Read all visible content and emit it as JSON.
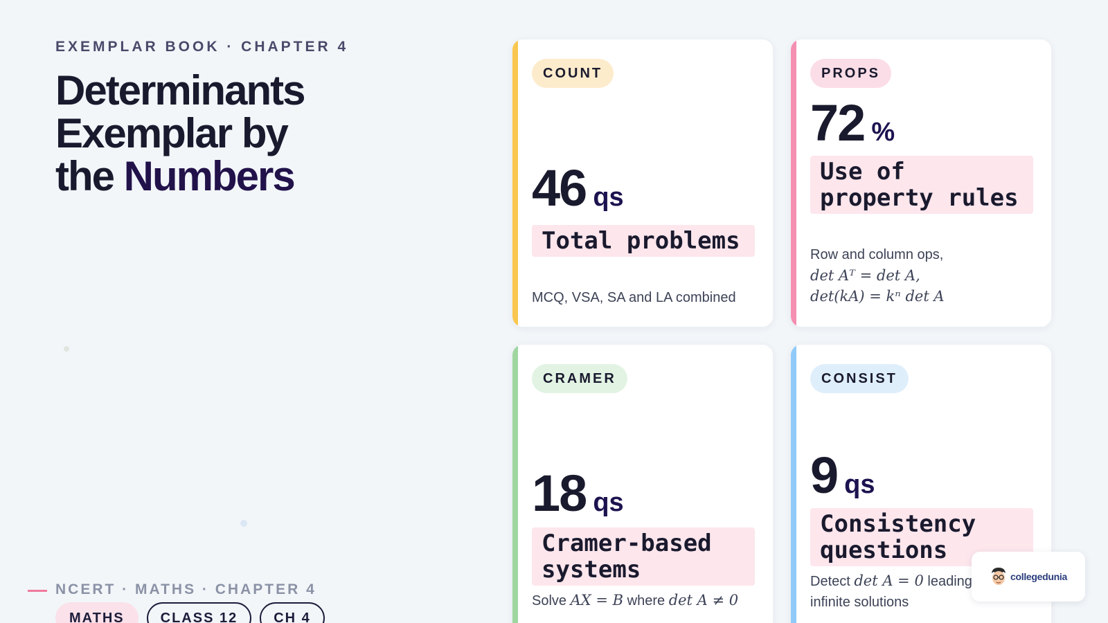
{
  "eyebrow": "EXEMPLAR BOOK · CHAPTER 4",
  "title": {
    "line1": "Determinants",
    "line2": "Exemplar by",
    "line3_plain": "the ",
    "line3_accent": "Numbers"
  },
  "footer": {
    "text": "NCERT · MATHS · CHAPTER 4",
    "tags": [
      "MATHS",
      "CLASS 12",
      "CH 4"
    ]
  },
  "cards": [
    {
      "tag": "COUNT",
      "value": "46",
      "unit": "qs",
      "label": "Total problems",
      "desc_plain": "MCQ, VSA, SA and LA combined",
      "accent": "#f9c74f",
      "pill_bg": "#fdeccc"
    },
    {
      "tag": "PROPS",
      "value": "72",
      "unit": "%",
      "label": "Use of property rules",
      "desc_intro": "Row and column ops,",
      "desc_math1": "det Aᵀ = det A,",
      "desc_math2": "det(kA) = kⁿ det A",
      "accent": "#f48fb1",
      "pill_bg": "#fbdde7"
    },
    {
      "tag": "CRAMER",
      "value": "18",
      "unit": "qs",
      "label": "Cramer-based systems",
      "desc_pre": "Solve ",
      "desc_m1": "AX = B",
      "desc_mid": " where ",
      "desc_m2": "det A ≠ 0",
      "accent": "#9fd6a0",
      "pill_bg": "#e2f3e3"
    },
    {
      "tag": "CONSIST",
      "value": "9",
      "unit": "qs",
      "label": "Consistency questions",
      "desc_pre": "Detect ",
      "desc_m1": "det A = 0",
      "desc_post": " leading to",
      "desc_line2": "infinite solutions",
      "accent": "#90caf9",
      "pill_bg": "#dfeefb"
    }
  ],
  "logo": {
    "brand": "collegedunia"
  }
}
